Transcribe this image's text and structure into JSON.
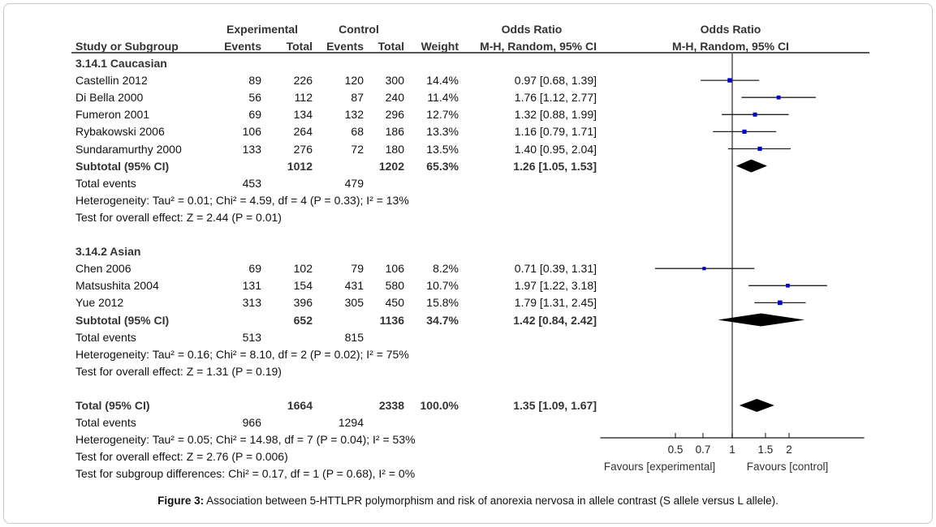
{
  "header": {
    "study_col": "Study or Subgroup",
    "experimental_group": "Experimental",
    "control_group": "Control",
    "events": "Events",
    "total": "Total",
    "weight": "Weight",
    "or_title": "Odds Ratio",
    "or_method": "M-H, Random, 95% CI",
    "plot_title": "Odds Ratio",
    "plot_method": "M-H, Random, 95% CI"
  },
  "subgroups": [
    {
      "title": "3.14.1 Caucasian",
      "studies": [
        {
          "name": "Castellin 2012",
          "exp_events": "89",
          "exp_total": "226",
          "ctl_events": "120",
          "ctl_total": "300",
          "weight": "14.4%",
          "or_text": "0.97 [0.68, 1.39]"
        },
        {
          "name": "Di Bella 2000",
          "exp_events": "56",
          "exp_total": "112",
          "ctl_events": "87",
          "ctl_total": "240",
          "weight": "11.4%",
          "or_text": "1.76 [1.12, 2.77]"
        },
        {
          "name": "Fumeron 2001",
          "exp_events": "69",
          "exp_total": "134",
          "ctl_events": "132",
          "ctl_total": "296",
          "weight": "12.7%",
          "or_text": "1.32 [0.88, 1.99]"
        },
        {
          "name": "Rybakowski 2006",
          "exp_events": "106",
          "exp_total": "264",
          "ctl_events": "68",
          "ctl_total": "186",
          "weight": "13.3%",
          "or_text": "1.16 [0.79, 1.71]"
        },
        {
          "name": "Sundaramurthy 2000",
          "exp_events": "133",
          "exp_total": "276",
          "ctl_events": "72",
          "ctl_total": "180",
          "weight": "13.5%",
          "or_text": "1.40 [0.95, 2.04]"
        }
      ],
      "subtotal": {
        "label": "Subtotal (95% CI)",
        "exp_total": "1012",
        "ctl_total": "1202",
        "weight": "65.3%",
        "or_text": "1.26 [1.05, 1.53]"
      },
      "total_events": {
        "label": "Total events",
        "exp": "453",
        "ctl": "479"
      },
      "heterogeneity": "Heterogeneity: Tau² = 0.01; Chi² = 4.59, df = 4 (P = 0.33); I² = 13%",
      "overall_effect": "Test for overall effect: Z = 2.44 (P = 0.01)"
    },
    {
      "title": "3.14.2 Asian",
      "studies": [
        {
          "name": "Chen 2006",
          "exp_events": "69",
          "exp_total": "102",
          "ctl_events": "79",
          "ctl_total": "106",
          "weight": "8.2%",
          "or_text": "0.71 [0.39, 1.31]"
        },
        {
          "name": "Matsushita 2004",
          "exp_events": "131",
          "exp_total": "154",
          "ctl_events": "431",
          "ctl_total": "580",
          "weight": "10.7%",
          "or_text": "1.97 [1.22, 3.18]"
        },
        {
          "name": "Yue 2012",
          "exp_events": "313",
          "exp_total": "396",
          "ctl_events": "305",
          "ctl_total": "450",
          "weight": "15.8%",
          "or_text": "1.79 [1.31, 2.45]"
        }
      ],
      "subtotal": {
        "label": "Subtotal (95% CI)",
        "exp_total": "652",
        "ctl_total": "1136",
        "weight": "34.7%",
        "or_text": "1.42 [0.84, 2.42]"
      },
      "total_events": {
        "label": "Total events",
        "exp": "513",
        "ctl": "815"
      },
      "heterogeneity": "Heterogeneity: Tau² = 0.16; Chi² = 8.10, df = 2 (P = 0.02); I² = 75%",
      "overall_effect": "Test for overall effect: Z = 1.31 (P = 0.19)"
    }
  ],
  "total": {
    "label": "Total (95% CI)",
    "exp_total": "1664",
    "ctl_total": "2338",
    "weight": "100.0%",
    "or_text": "1.35 [1.09, 1.67]",
    "total_events": {
      "label": "Total events",
      "exp": "966",
      "ctl": "1294"
    },
    "heterogeneity": "Heterogeneity: Tau² = 0.05; Chi² = 14.98, df = 7 (P = 0.04); I² = 53%",
    "overall_effect": "Test for overall effect: Z = 2.76 (P = 0.006)",
    "subgroup_diff": "Test for subgroup differences: Chi² = 0.17, df = 1 (P = 0.68), I² = 0%"
  },
  "axis": {
    "favours_left": "Favours [experimental]",
    "favours_right": "Favours [control]"
  },
  "caption": {
    "label": "Figure 3:",
    "text": " Association between 5-HTTLPR polymorphism and risk of anorexia nervosa in allele contrast (S allele versus L allele)."
  },
  "colors": {
    "study_marker": "#0000cc",
    "diamond": "#000000",
    "line": "#333333"
  },
  "chart_data": {
    "type": "forest",
    "title": "Odds Ratio M-H, Random, 95% CI",
    "xscale": "log",
    "xlim": [
      0.2,
      5
    ],
    "xticks": [
      0.5,
      0.7,
      1,
      1.5,
      2
    ],
    "xtick_labels": [
      "0.5",
      "0.7",
      "1",
      "1.5",
      "2"
    ],
    "reference_line": 1,
    "xlabel_left": "Favours [experimental]",
    "xlabel_right": "Favours [control]",
    "studies": [
      {
        "name": "Castellin 2012",
        "or": 0.97,
        "lo": 0.68,
        "hi": 1.39,
        "weight": 14.4
      },
      {
        "name": "Di Bella 2000",
        "or": 1.76,
        "lo": 1.12,
        "hi": 2.77,
        "weight": 11.4
      },
      {
        "name": "Fumeron 2001",
        "or": 1.32,
        "lo": 0.88,
        "hi": 1.99,
        "weight": 12.7
      },
      {
        "name": "Rybakowski 2006",
        "or": 1.16,
        "lo": 0.79,
        "hi": 1.71,
        "weight": 13.3
      },
      {
        "name": "Sundaramurthy 2000",
        "or": 1.4,
        "lo": 0.95,
        "hi": 2.04,
        "weight": 13.5
      },
      {
        "name": "Chen 2006",
        "or": 0.71,
        "lo": 0.39,
        "hi": 1.31,
        "weight": 8.2
      },
      {
        "name": "Matsushita 2004",
        "or": 1.97,
        "lo": 1.22,
        "hi": 3.18,
        "weight": 10.7
      },
      {
        "name": "Yue 2012",
        "or": 1.79,
        "lo": 1.31,
        "hi": 2.45,
        "weight": 15.8
      }
    ],
    "summaries": [
      {
        "name": "Subtotal Caucasian",
        "or": 1.26,
        "lo": 1.05,
        "hi": 1.53
      },
      {
        "name": "Subtotal Asian",
        "or": 1.42,
        "lo": 0.84,
        "hi": 2.42
      },
      {
        "name": "Total",
        "or": 1.35,
        "lo": 1.09,
        "hi": 1.67
      }
    ]
  }
}
